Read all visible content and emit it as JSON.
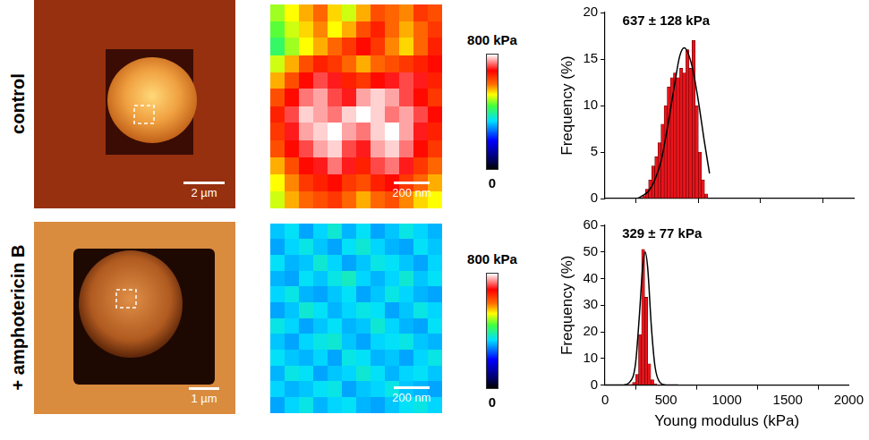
{
  "row_labels": [
    "control",
    "+ amphotericin B"
  ],
  "height_images": [
    {
      "scale_bar": "2 µm"
    },
    {
      "scale_bar": "1 µm"
    }
  ],
  "chart_data": [
    {
      "type": "heatmap",
      "cells": [
        [
          480,
          520,
          560,
          600,
          540,
          500,
          560,
          620,
          600,
          580,
          640,
          620
        ],
        [
          450,
          500,
          540,
          580,
          520,
          560,
          620,
          660,
          600,
          560,
          600,
          640
        ],
        [
          420,
          480,
          520,
          560,
          600,
          640,
          680,
          640,
          580,
          540,
          600,
          660
        ],
        [
          500,
          560,
          620,
          660,
          640,
          600,
          560,
          600,
          620,
          640,
          660,
          680
        ],
        [
          560,
          620,
          680,
          720,
          700,
          660,
          640,
          680,
          700,
          720,
          700,
          660
        ],
        [
          620,
          680,
          740,
          760,
          720,
          700,
          760,
          780,
          760,
          720,
          680,
          640
        ],
        [
          660,
          720,
          780,
          760,
          740,
          780,
          800,
          780,
          740,
          760,
          720,
          680
        ],
        [
          640,
          700,
          760,
          780,
          800,
          760,
          740,
          780,
          800,
          760,
          700,
          660
        ],
        [
          620,
          680,
          720,
          760,
          780,
          720,
          700,
          760,
          780,
          740,
          680,
          640
        ],
        [
          560,
          620,
          680,
          700,
          740,
          700,
          660,
          720,
          740,
          700,
          640,
          600
        ],
        [
          520,
          580,
          640,
          660,
          680,
          640,
          620,
          660,
          680,
          640,
          600,
          560
        ],
        [
          500,
          560,
          600,
          620,
          640,
          600,
          560,
          600,
          620,
          580,
          540,
          520
        ]
      ],
      "colorbar_range": [
        0,
        800
      ],
      "colorbar_ticks": [
        0,
        {
          "value": 800,
          "label": "800 kPa"
        }
      ],
      "scale_bar": "200 nm"
    },
    {
      "type": "histogram",
      "bins": [
        300,
        325,
        350,
        375,
        400,
        425,
        450,
        475,
        500,
        525,
        550,
        575,
        600,
        625,
        650,
        675,
        700,
        725,
        750,
        775,
        800,
        825
      ],
      "counts": [
        0.3,
        1,
        2,
        3.5,
        4.5,
        6,
        8,
        10,
        12,
        13,
        13.5,
        13,
        14,
        13.5,
        16,
        14,
        17,
        10,
        5,
        2,
        0.5
      ],
      "color": "#e8141c",
      "fit": {
        "x": [
          0,
          250,
          300,
          350,
          400,
          450,
          500,
          550,
          600,
          637,
          700,
          750,
          800,
          840
        ],
        "y": [
          0,
          0,
          0.3,
          0.8,
          2,
          4,
          7.5,
          11.5,
          15.3,
          16.2,
          14.2,
          10.5,
          6,
          2.7
        ]
      },
      "annotation": "637 ± 128 kPa",
      "xlim": [
        0,
        2000
      ],
      "xticks": [
        0,
        500,
        1000,
        1500,
        2000
      ],
      "ylim": [
        0,
        20
      ],
      "yticks": [
        0,
        5,
        10,
        15,
        20
      ],
      "tick_labels": "y",
      "grid": false,
      "y_label": "Frequency (%)"
    },
    {
      "type": "heatmap",
      "cells": [
        [
          320,
          340,
          300,
          330,
          360,
          310,
          340,
          300,
          320,
          350,
          330,
          310
        ],
        [
          300,
          330,
          350,
          320,
          300,
          340,
          360,
          330,
          310,
          300,
          340,
          320
        ],
        [
          340,
          310,
          320,
          360,
          330,
          300,
          320,
          350,
          340,
          320,
          300,
          330
        ],
        [
          310,
          300,
          340,
          320,
          350,
          370,
          330,
          310,
          330,
          360,
          320,
          340
        ],
        [
          330,
          350,
          310,
          300,
          320,
          340,
          300,
          320,
          350,
          330,
          310,
          300
        ],
        [
          300,
          320,
          360,
          340,
          310,
          330,
          350,
          340,
          300,
          320,
          350,
          330
        ],
        [
          350,
          330,
          300,
          320,
          340,
          310,
          320,
          360,
          330,
          310,
          300,
          340
        ],
        [
          320,
          300,
          330,
          350,
          360,
          320,
          300,
          330,
          340,
          350,
          320,
          310
        ],
        [
          340,
          320,
          310,
          330,
          300,
          350,
          340,
          310,
          320,
          300,
          330,
          350
        ],
        [
          310,
          350,
          340,
          300,
          320,
          330,
          360,
          340,
          310,
          330,
          340,
          320
        ],
        [
          330,
          310,
          320,
          340,
          350,
          300,
          320,
          330,
          350,
          320,
          310,
          300
        ],
        [
          300,
          330,
          350,
          310,
          330,
          340,
          310,
          300,
          320,
          340,
          350,
          330
        ]
      ],
      "colorbar_range": [
        0,
        800
      ],
      "colorbar_ticks": [
        0,
        {
          "value": 800,
          "label": "800 kPa"
        }
      ],
      "scale_bar": "200 nm"
    },
    {
      "type": "histogram",
      "bins": [
        200,
        225,
        250,
        275,
        300,
        325,
        350,
        375,
        400,
        425
      ],
      "counts": [
        0.3,
        1,
        4,
        19,
        51,
        33,
        8,
        2,
        0.5
      ],
      "color": "#e8141c",
      "fit": {
        "x": [
          0,
          150,
          200,
          250,
          280,
          310,
          329,
          350,
          380,
          410,
          450,
          500,
          600
        ],
        "y": [
          0,
          0,
          1,
          8,
          25,
          45,
          50,
          44,
          22,
          7,
          1,
          0,
          0
        ]
      },
      "annotation": "329 ± 77 kPa",
      "xlim": [
        0,
        2000
      ],
      "xticks": [
        0,
        500,
        1000,
        1500,
        2000
      ],
      "ylim": [
        0,
        60
      ],
      "yticks": [
        0,
        10,
        20,
        30,
        40,
        50,
        60
      ],
      "tick_labels": true,
      "grid": false,
      "x_label": "Young modulus (kPa)",
      "y_label": "Frequency (%)"
    }
  ]
}
